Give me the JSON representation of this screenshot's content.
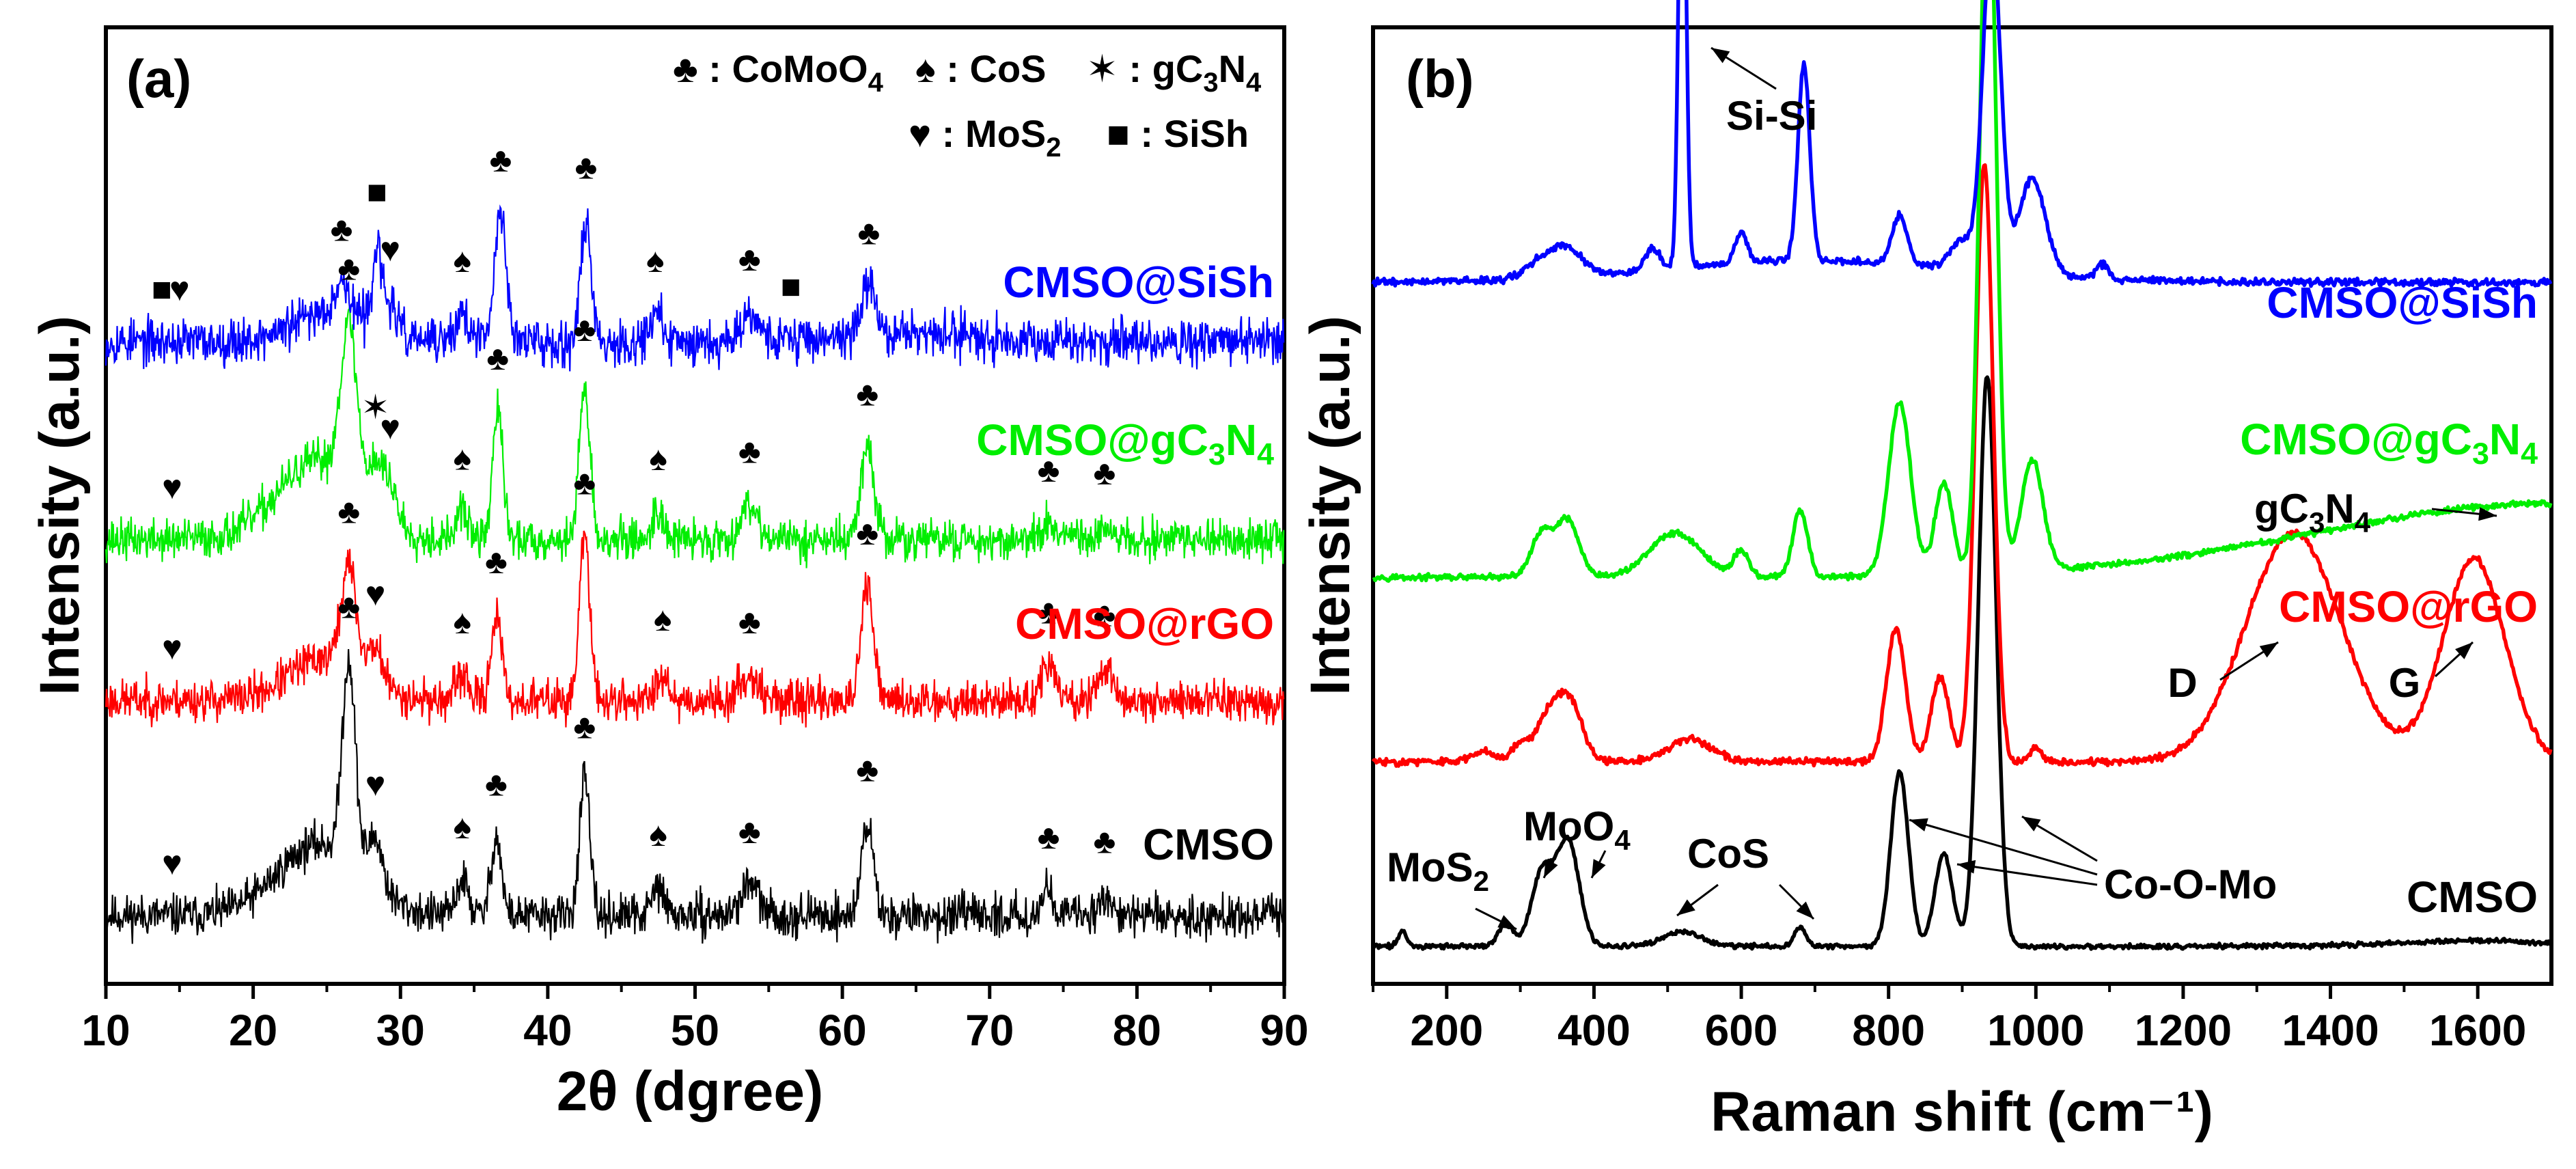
{
  "colors": {
    "CMSO": "#000000",
    "CMSO@rGO": "#ff0000",
    "CMSO@gC3N4": "#00ee00",
    "CMSO@SiSh": "#0000ff"
  },
  "chart_data": [
    {
      "panel": "(a)",
      "type": "line",
      "xlabel": "2θ (dgree)",
      "ylabel": "Intensity (a.u.)",
      "xlim": [
        10,
        90
      ],
      "xticks": [
        10,
        20,
        30,
        40,
        50,
        60,
        70,
        80,
        90
      ],
      "legend": [
        {
          "symbol": "♣",
          "text": ": CoMoO",
          "sub": "4"
        },
        {
          "symbol": "♠",
          "text": ": CoS",
          "sub": ""
        },
        {
          "symbol": "✶",
          "text": ": gC",
          "sub": "3",
          "text2": "N",
          "sub2": "4"
        },
        {
          "symbol": "♥",
          "text": ": MoS",
          "sub": "2"
        },
        {
          "symbol": "■",
          "text": ": SiSh",
          "sub": ""
        }
      ],
      "series": [
        {
          "name": "CMSO",
          "label": "CMSO",
          "color": "#000000",
          "offset": 0,
          "noise": 0.9,
          "seed": 11,
          "peaks": [
            [
              26.5,
              14,
              0.45
            ],
            [
              28.3,
              3.5,
              0.5
            ],
            [
              34.2,
              2.5,
              0.4
            ],
            [
              36.5,
              5.5,
              0.35
            ],
            [
              42.5,
              9.5,
              0.35
            ],
            [
              47.5,
              2,
              0.4
            ],
            [
              53.7,
              2.2,
              0.6
            ],
            [
              61.7,
              6.5,
              0.4
            ],
            [
              74.0,
              1.8,
              0.4
            ],
            [
              77.8,
              1.5,
              0.4
            ]
          ],
          "humps": [
            [
              24.5,
              5,
              2.8
            ]
          ]
        },
        {
          "name": "CMSO@rGO",
          "label": "CMSO@rGO",
          "color": "#ff0000",
          "offset": 1,
          "noise": 0.9,
          "seed": 23,
          "peaks": [
            [
              26.5,
              7,
              0.5
            ],
            [
              28.3,
              2.5,
              0.5
            ],
            [
              34.2,
              1.8,
              0.4
            ],
            [
              36.5,
              6,
              0.35
            ],
            [
              42.5,
              11.5,
              0.35
            ],
            [
              47.8,
              2,
              0.4
            ],
            [
              53.7,
              1.8,
              0.6
            ],
            [
              61.7,
              8,
              0.4
            ],
            [
              74.0,
              2.5,
              0.45
            ],
            [
              77.8,
              2.3,
              0.45
            ]
          ],
          "humps": [
            [
              25,
              3,
              2.5
            ]
          ]
        },
        {
          "name": "CMSO@gC3N4",
          "label": "CMSO@gC",
          "label_sub": "3",
          "label2": "N",
          "label_sub2": "4",
          "color": "#00ee00",
          "offset": 2,
          "noise": 0.9,
          "seed": 37,
          "peaks": [
            [
              26.5,
              11,
              0.55
            ],
            [
              28.3,
              3,
              0.5
            ],
            [
              29.3,
              2.5,
              0.5
            ],
            [
              34.2,
              2,
              0.4
            ],
            [
              36.6,
              9,
              0.35
            ],
            [
              42.5,
              11,
              0.35
            ],
            [
              47.5,
              2,
              0.4
            ],
            [
              53.7,
              2.5,
              0.6
            ],
            [
              61.7,
              6.5,
              0.45
            ],
            [
              74.0,
              1.2,
              0.4
            ],
            [
              77.8,
              1,
              0.4
            ]
          ],
          "humps": [
            [
              24.5,
              5.5,
              2.8
            ]
          ]
        },
        {
          "name": "CMSO@SiSh",
          "label": "CMSO@SiSh",
          "color": "#0000ff",
          "offset": 3,
          "noise": 1.0,
          "seed": 53,
          "peaks": [
            [
              26.0,
              2,
              0.5
            ],
            [
              28.4,
              5.5,
              0.3
            ],
            [
              29.3,
              2,
              0.4
            ],
            [
              34.2,
              2,
              0.4
            ],
            [
              36.8,
              9,
              0.4
            ],
            [
              42.6,
              8.5,
              0.35
            ],
            [
              47.3,
              2,
              0.4
            ],
            [
              53.7,
              2,
              0.6
            ],
            [
              61.8,
              3.5,
              0.5
            ]
          ],
          "humps": [
            [
              25.5,
              2.2,
              2.5
            ],
            [
              65,
              0.5,
              6
            ]
          ]
        }
      ],
      "markers": [
        {
          "series": "CMSO",
          "items": [
            [
              14.5,
              "♥"
            ],
            [
              26.5,
              "♣"
            ],
            [
              28.3,
              "♥"
            ],
            [
              34.2,
              "♠"
            ],
            [
              36.5,
              "♣"
            ],
            [
              42.5,
              "♣"
            ],
            [
              47.5,
              "♠"
            ],
            [
              53.7,
              "♣"
            ],
            [
              61.7,
              "♣"
            ],
            [
              74.0,
              "♣"
            ],
            [
              77.8,
              "♣"
            ]
          ]
        },
        {
          "series": "CMSO@rGO",
          "items": [
            [
              14.5,
              "♥"
            ],
            [
              26.5,
              "♣"
            ],
            [
              28.3,
              "♥"
            ],
            [
              34.2,
              "♠"
            ],
            [
              36.5,
              "♣"
            ],
            [
              42.5,
              "♣"
            ],
            [
              47.8,
              "♠"
            ],
            [
              53.7,
              "♣"
            ],
            [
              61.7,
              "♣"
            ],
            [
              74.0,
              "♣"
            ],
            [
              77.8,
              "♣"
            ]
          ]
        },
        {
          "series": "CMSO@gC3N4",
          "items": [
            [
              14.5,
              "♥"
            ],
            [
              26.5,
              "♣"
            ],
            [
              28.3,
              "✶"
            ],
            [
              29.3,
              "♥"
            ],
            [
              34.2,
              "♠"
            ],
            [
              36.6,
              "♣"
            ],
            [
              42.5,
              "♣"
            ],
            [
              47.5,
              "♠"
            ],
            [
              53.7,
              "♣"
            ],
            [
              61.7,
              "♣"
            ],
            [
              74.0,
              "♣"
            ],
            [
              77.8,
              "♣"
            ]
          ]
        },
        {
          "series": "CMSO@SiSh",
          "items": [
            [
              13.8,
              "■"
            ],
            [
              15.0,
              "♥"
            ],
            [
              26.0,
              "♣"
            ],
            [
              28.4,
              "■"
            ],
            [
              29.3,
              "♥"
            ],
            [
              34.2,
              "♠"
            ],
            [
              36.8,
              "♣"
            ],
            [
              42.6,
              "♣"
            ],
            [
              47.3,
              "♠"
            ],
            [
              53.7,
              "♣"
            ],
            [
              56.5,
              "■"
            ],
            [
              61.8,
              "♣"
            ]
          ]
        }
      ]
    },
    {
      "panel": "(b)",
      "type": "line",
      "xlabel": "Raman shift (cm⁻¹)",
      "ylabel": "Intensity (a.u.)",
      "xlim": [
        100,
        1700
      ],
      "xticks": [
        200,
        400,
        600,
        800,
        1000,
        1200,
        1400,
        1600
      ],
      "series": [
        {
          "name": "CMSO",
          "label": "CMSO",
          "color": "#000000",
          "base": 0.0,
          "noise": 0.08,
          "seed": 71,
          "peaks": [
            [
              140,
              0.4,
              6
            ],
            [
              280,
              0.6,
              10
            ],
            [
              330,
              2.0,
              15
            ],
            [
              365,
              2.8,
              15
            ],
            [
              520,
              0.4,
              25
            ],
            [
              680,
              0.5,
              8
            ],
            [
              815,
              4.7,
              12
            ],
            [
              875,
              2.5,
              12
            ],
            [
              934,
              15.5,
              12
            ]
          ],
          "humps": [
            [
              1600,
              0.15,
              100
            ]
          ]
        },
        {
          "name": "CMSO@rGO",
          "label": "CMSO@rGO",
          "color": "#ff0000",
          "base": 5.0,
          "noise": 0.12,
          "seed": 83,
          "peaks": [
            [
              250,
              0.3,
              15
            ],
            [
              300,
              0.5,
              12
            ],
            [
              335,
              1.0,
              15
            ],
            [
              365,
              1.7,
              18
            ],
            [
              530,
              0.6,
              30
            ],
            [
              810,
              3.6,
              13
            ],
            [
              870,
              2.3,
              12
            ],
            [
              930,
              16.2,
              12
            ],
            [
              1000,
              0.4,
              8
            ]
          ],
          "humps": [
            [
              1350,
              6.2,
              65
            ],
            [
              1595,
              5.5,
              42
            ]
          ]
        },
        {
          "name": "CMSO@gC3N4",
          "label": "CMSO@gC",
          "label_sub": "3",
          "label2": "N",
          "label_sub2": "4",
          "color": "#00ee00",
          "base": 10.0,
          "noise": 0.1,
          "seed": 97,
          "peaks": [
            [
              330,
              1.2,
              15
            ],
            [
              365,
              1.5,
              15
            ],
            [
              510,
              1.2,
              35
            ],
            [
              600,
              0.7,
              10
            ],
            [
              680,
              1.8,
              10
            ],
            [
              815,
              4.7,
              15
            ],
            [
              875,
              2.5,
              12
            ],
            [
              935,
              20.0,
              11
            ],
            [
              995,
              3.0,
              15
            ]
          ],
          "humps": [
            [
              1700,
              2.0,
              320
            ]
          ]
        },
        {
          "name": "CMSO@SiSh",
          "label": "CMSO@SiSh",
          "color": "#0000ff",
          "base": 18.0,
          "noise": 0.12,
          "seed": 109,
          "peaks": [
            [
              330,
              0.5,
              20
            ],
            [
              365,
              0.7,
              20
            ],
            [
              480,
              0.6,
              10
            ],
            [
              520,
              13.5,
              5
            ],
            [
              600,
              0.8,
              8
            ],
            [
              685,
              5.3,
              8
            ],
            [
              815,
              1.3,
              10
            ],
            [
              900,
              0.8,
              15
            ],
            [
              940,
              9.2,
              12
            ],
            [
              995,
              2.6,
              18
            ],
            [
              1090,
              0.4,
              8
            ]
          ],
          "humps": [
            [
              700,
              0.6,
              200
            ]
          ]
        }
      ],
      "annotations": [
        {
          "text": "Si-Si"
        },
        {
          "text": "gC",
          "sub": "3",
          "text2": "N",
          "sub2": "4"
        },
        {
          "text": "D"
        },
        {
          "text": "G"
        },
        {
          "text": "MoS",
          "sub": "2"
        },
        {
          "text": "MoO",
          "sub": "4"
        },
        {
          "text": "CoS"
        },
        {
          "text": "Co-O-Mo"
        }
      ]
    }
  ]
}
